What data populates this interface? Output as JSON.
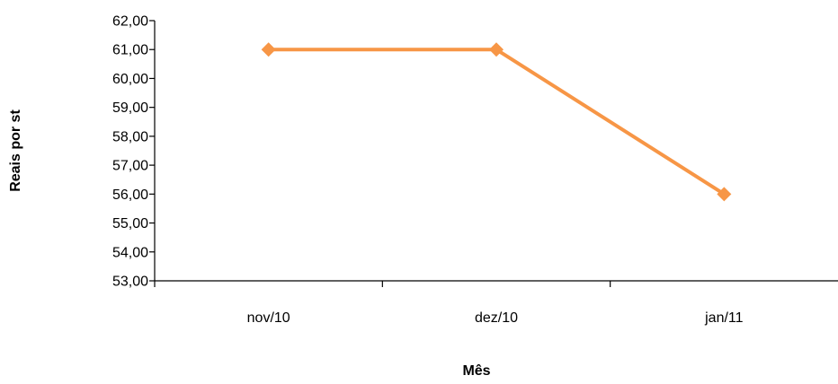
{
  "chart_data": {
    "type": "line",
    "title": "",
    "xlabel": "Mês",
    "ylabel": "Reais por st",
    "categories": [
      "nov/10",
      "dez/10",
      "jan/11"
    ],
    "series": [
      {
        "values": [
          61.0,
          61.0,
          56.0
        ],
        "color": "#F79646",
        "marker": "diamond"
      }
    ],
    "ylim": [
      53,
      62
    ],
    "ytick_step": 1,
    "ytick_labels": [
      "53,00",
      "54,00",
      "55,00",
      "56,00",
      "57,00",
      "58,00",
      "59,00",
      "60,00",
      "61,00",
      "62,00"
    ],
    "grid": false,
    "legend": "none"
  }
}
